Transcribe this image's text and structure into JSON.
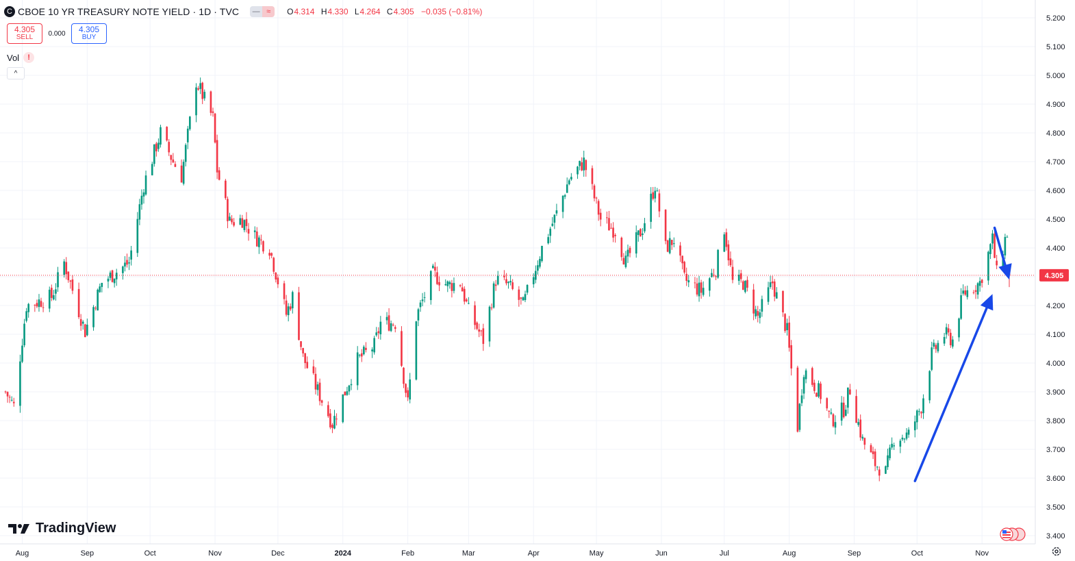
{
  "header": {
    "symbol_icon": "C",
    "title": "CBOE 10 YR TREASURY NOTE YIELD · 1D · TVC",
    "pill_left": "—",
    "pill_right": "≈",
    "o_label": "O",
    "o_value": "4.314",
    "h_label": "H",
    "h_value": "4.330",
    "l_label": "L",
    "l_value": "4.264",
    "c_label": "C",
    "c_value": "4.305",
    "change": "−0.035 (−0.81%)"
  },
  "trade": {
    "sell_price": "4.305",
    "sell_label": "SELL",
    "spread": "0.000",
    "buy_price": "4.305",
    "buy_label": "BUY"
  },
  "volume": {
    "label": "Vol",
    "warning": "!"
  },
  "collapse_icon": "^",
  "brand": {
    "name": "TradingView"
  },
  "colors": {
    "up": "#089981",
    "down": "#f23645",
    "arrow": "#1848e8",
    "grid": "#f0f3fa"
  },
  "chart_data": {
    "type": "candlestick",
    "title": "CBOE 10 YR TREASURY NOTE YIELD",
    "interval": "1D",
    "ylim": [
      3.4,
      5.2
    ],
    "yticks": [
      "5.200",
      "5.100",
      "5.000",
      "4.900",
      "4.800",
      "4.700",
      "4.600",
      "4.500",
      "4.400",
      "4.300",
      "4.200",
      "4.100",
      "4.000",
      "3.900",
      "3.800",
      "3.700",
      "3.600",
      "3.500",
      "3.400"
    ],
    "xticks": [
      "Aug",
      "Sep",
      "Oct",
      "Nov",
      "Dec",
      "2024",
      "Feb",
      "Mar",
      "Apr",
      "May",
      "Jun",
      "Jul",
      "Aug",
      "Sep",
      "Oct",
      "Nov"
    ],
    "last_price": "4.305",
    "last_price_line": 4.305,
    "grid": true,
    "trend_up_arrow": {
      "from": [
        "2024-09-30",
        3.59
      ],
      "to": [
        "2024-11-06",
        4.24
      ]
    },
    "trend_down_arrow": {
      "from": [
        "2024-11-07",
        4.47
      ],
      "to": [
        "2024-11-14",
        4.29
      ]
    },
    "series": [
      {
        "name": "close_anchors",
        "points": [
          [
            "2023-07-24",
            3.9
          ],
          [
            "2023-07-28",
            3.85
          ],
          [
            "2023-08-03",
            4.2
          ],
          [
            "2023-08-15",
            4.23
          ],
          [
            "2023-08-21",
            4.35
          ],
          [
            "2023-08-31",
            4.11
          ],
          [
            "2023-09-08",
            4.28
          ],
          [
            "2023-09-21",
            4.35
          ],
          [
            "2023-09-28",
            4.62
          ],
          [
            "2023-10-06",
            4.8
          ],
          [
            "2023-10-12",
            4.7
          ],
          [
            "2023-10-16",
            4.65
          ],
          [
            "2023-10-23",
            4.98
          ],
          [
            "2023-10-31",
            4.85
          ],
          [
            "2023-11-02",
            4.67
          ],
          [
            "2023-11-08",
            4.49
          ],
          [
            "2023-11-14",
            4.5
          ],
          [
            "2023-11-20",
            4.44
          ],
          [
            "2023-11-27",
            4.4
          ],
          [
            "2023-12-05",
            4.17
          ],
          [
            "2023-12-08",
            4.23
          ],
          [
            "2023-12-13",
            4.02
          ],
          [
            "2023-12-19",
            3.92
          ],
          [
            "2023-12-27",
            3.79
          ],
          [
            "2024-01-08",
            4.01
          ],
          [
            "2024-01-16",
            4.06
          ],
          [
            "2024-01-19",
            4.14
          ],
          [
            "2024-01-26",
            4.14
          ],
          [
            "2024-02-01",
            3.86
          ],
          [
            "2024-02-05",
            4.16
          ],
          [
            "2024-02-13",
            4.31
          ],
          [
            "2024-02-20",
            4.27
          ],
          [
            "2024-02-26",
            4.28
          ],
          [
            "2024-03-01",
            4.18
          ],
          [
            "2024-03-08",
            4.08
          ],
          [
            "2024-03-14",
            4.29
          ],
          [
            "2024-03-20",
            4.27
          ],
          [
            "2024-03-27",
            4.2
          ],
          [
            "2024-04-05",
            4.4
          ],
          [
            "2024-04-12",
            4.52
          ],
          [
            "2024-04-18",
            4.64
          ],
          [
            "2024-04-25",
            4.7
          ],
          [
            "2024-05-03",
            4.5
          ],
          [
            "2024-05-10",
            4.46
          ],
          [
            "2024-05-15",
            4.35
          ],
          [
            "2024-05-23",
            4.47
          ],
          [
            "2024-05-29",
            4.62
          ],
          [
            "2024-06-03",
            4.4
          ],
          [
            "2024-06-07",
            4.43
          ],
          [
            "2024-06-12",
            4.29
          ],
          [
            "2024-06-20",
            4.25
          ],
          [
            "2024-06-27",
            4.33
          ],
          [
            "2024-07-01",
            4.47
          ],
          [
            "2024-07-05",
            4.28
          ],
          [
            "2024-07-10",
            4.28
          ],
          [
            "2024-07-17",
            4.16
          ],
          [
            "2024-07-24",
            4.28
          ],
          [
            "2024-07-31",
            4.11
          ],
          [
            "2024-08-05",
            3.78
          ],
          [
            "2024-08-08",
            3.98
          ],
          [
            "2024-08-16",
            3.89
          ],
          [
            "2024-08-21",
            3.8
          ],
          [
            "2024-08-27",
            3.84
          ],
          [
            "2024-08-30",
            3.91
          ],
          [
            "2024-09-05",
            3.73
          ],
          [
            "2024-09-11",
            3.65
          ],
          [
            "2024-09-16",
            3.62
          ],
          [
            "2024-09-20",
            3.74
          ],
          [
            "2024-09-27",
            3.75
          ],
          [
            "2024-10-03",
            3.85
          ],
          [
            "2024-10-08",
            4.03
          ],
          [
            "2024-10-14",
            4.1
          ],
          [
            "2024-10-18",
            4.08
          ],
          [
            "2024-10-23",
            4.24
          ],
          [
            "2024-10-31",
            4.28
          ],
          [
            "2024-11-06",
            4.43
          ],
          [
            "2024-11-08",
            4.31
          ],
          [
            "2024-11-12",
            4.43
          ],
          [
            "2024-11-13",
            4.45
          ],
          [
            "2024-11-14",
            4.305
          ]
        ]
      }
    ]
  }
}
